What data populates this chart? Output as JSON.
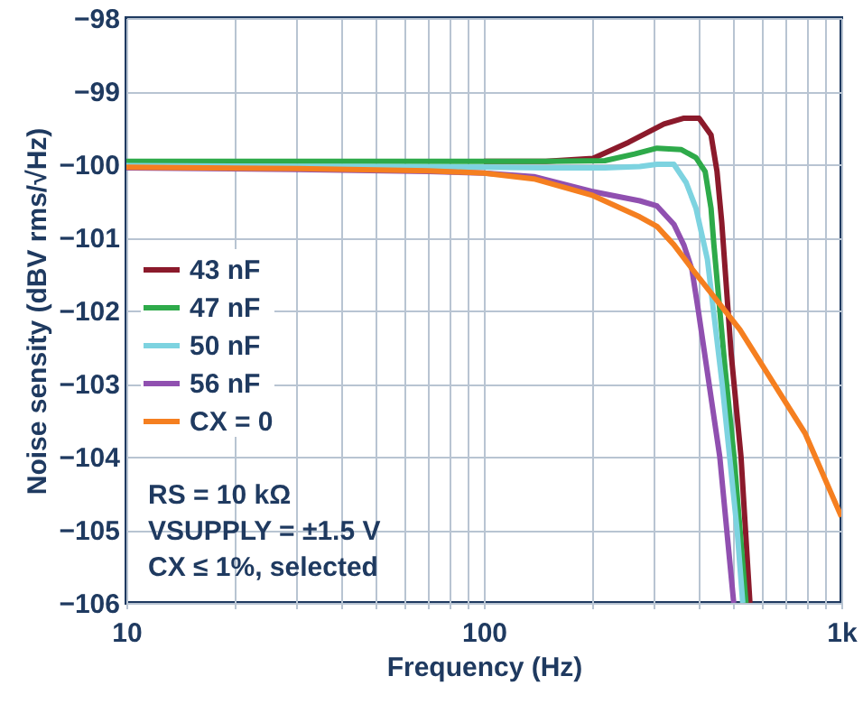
{
  "chart_data": {
    "type": "line",
    "xlabel": "Frequency (Hz)",
    "ylabel": "Noise sensity (dBV rms/√Hz)",
    "log": "x",
    "grid": true,
    "legend": "left",
    "line_style": "solid",
    "marker": "none",
    "xlim": [
      10,
      1000
    ],
    "ylim": [
      -106,
      -98
    ],
    "xticks": [
      10,
      {
        "value": 20,
        "label": null
      },
      {
        "value": 30,
        "label": null
      },
      {
        "value": 40,
        "label": null
      },
      {
        "value": 50,
        "label": null
      },
      {
        "value": 60,
        "label": null
      },
      {
        "value": 70,
        "label": null
      },
      {
        "value": 80,
        "label": null
      },
      {
        "value": 90,
        "label": null
      },
      100,
      {
        "value": 200,
        "label": null
      },
      {
        "value": 300,
        "label": null
      },
      {
        "value": 400,
        "label": null
      },
      {
        "value": 500,
        "label": null
      },
      {
        "value": 600,
        "label": null
      },
      {
        "value": 700,
        "label": null
      },
      {
        "value": 800,
        "label": null
      },
      {
        "value": 900,
        "label": null
      },
      {
        "value": 1000,
        "label": "1k"
      }
    ],
    "yticks": [
      -106,
      -105,
      -104,
      -103,
      -102,
      -101,
      -100,
      -99,
      -98
    ],
    "annotations": [
      "RS = 10 kΩ",
      "VSUPPLY = ±1.5 V",
      "CX ≤ 1%, selected"
    ],
    "series": [
      {
        "name": "43 nF",
        "color": "#8b1a2b",
        "x": [
          100,
          149,
          202,
          254,
          319,
          363,
          400,
          432,
          449,
          463,
          492,
          524,
          555
        ],
        "values": [
          -99.96,
          -99.96,
          -99.92,
          -99.7,
          -99.45,
          -99.37,
          -99.37,
          -99.6,
          -100.1,
          -100.8,
          -102.6,
          -104.0,
          -106
        ]
      },
      {
        "name": "47 nF",
        "color": "#2eaa4a",
        "x": [
          10,
          50,
          100,
          149,
          218,
          264,
          305,
          357,
          392,
          416,
          432,
          440,
          473,
          501,
          541
        ],
        "values": [
          -99.96,
          -99.96,
          -99.96,
          -99.96,
          -99.95,
          -99.86,
          -99.78,
          -99.8,
          -99.91,
          -100.1,
          -100.6,
          -101.1,
          -102.8,
          -104.0,
          -106
        ]
      },
      {
        "name": "50 nF",
        "color": "#7dd3e0",
        "x": [
          10,
          50,
          100,
          149,
          218,
          273,
          305,
          340,
          368,
          392,
          422,
          464,
          511,
          530
        ],
        "values": [
          -100.02,
          -100.03,
          -100.04,
          -100.05,
          -100.05,
          -100.03,
          -100.0,
          -100.0,
          -100.25,
          -100.6,
          -101.3,
          -103.0,
          -105.0,
          -106
        ]
      },
      {
        "name": "56 nF",
        "color": "#9050b0",
        "x": [
          10,
          30,
          70,
          100,
          138,
          200,
          273,
          305,
          340,
          363,
          382,
          398,
          457,
          500
        ],
        "values": [
          -100.05,
          -100.07,
          -100.1,
          -100.12,
          -100.17,
          -100.37,
          -100.5,
          -100.57,
          -100.82,
          -101.11,
          -101.44,
          -102.0,
          -104.0,
          -106
        ]
      },
      {
        "name": "CX = 0",
        "color": "#f57f20",
        "x": [
          10,
          30,
          70,
          100,
          138,
          200,
          273,
          305,
          340,
          385,
          520,
          673,
          792,
          1000
        ],
        "values": [
          -100.04,
          -100.06,
          -100.09,
          -100.12,
          -100.2,
          -100.42,
          -100.72,
          -100.85,
          -101.1,
          -101.45,
          -102.26,
          -103.13,
          -103.68,
          -104.82
        ]
      }
    ]
  }
}
